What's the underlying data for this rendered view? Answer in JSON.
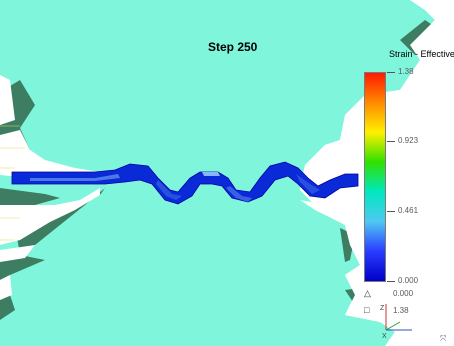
{
  "simulation": {
    "step_label": "Step  250"
  },
  "legend": {
    "title": "Strain - Effective",
    "colors": [
      "#ff1a00",
      "#ff8a00",
      "#fff000",
      "#30e000",
      "#00e8c0",
      "#50c8f0",
      "#2a3cff",
      "#0000c8"
    ],
    "ticks": [
      {
        "label": "1.38",
        "value": 1.38
      },
      {
        "label": "0.923",
        "value": 0.923
      },
      {
        "label": "0.461",
        "value": 0.461
      },
      {
        "label": "0.000",
        "value": 0.0
      }
    ],
    "range": [
      0.0,
      1.38
    ],
    "min_marker": {
      "icon": "triangle-icon",
      "value": "0.000"
    },
    "max_marker": {
      "icon": "square-icon",
      "value": "1.38"
    }
  },
  "view": {
    "background_color": "#7ff5dc",
    "gear_shadow_color": "#3d7d62",
    "axis_labels": {
      "z": "Z",
      "x": "X"
    }
  }
}
